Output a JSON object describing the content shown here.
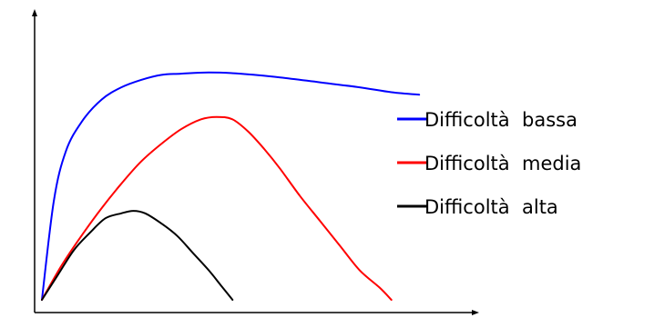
{
  "chart_data": {
    "type": "line",
    "title": "",
    "xlabel": "",
    "ylabel": "",
    "axis_ticks": false,
    "grid": false,
    "legend_position": "right",
    "xlim": [
      0,
      100
    ],
    "ylim": [
      0,
      100
    ],
    "series": [
      {
        "name": "Difficoltà  bassa",
        "color": "#0000ff",
        "x": [
          0,
          3,
          6,
          10,
          15,
          20,
          25,
          30,
          35,
          42,
          50,
          60,
          70,
          80,
          88,
          95
        ],
        "y": [
          0,
          40,
          60,
          72,
          81,
          86,
          89,
          91,
          91.5,
          92,
          91.5,
          90,
          88,
          86,
          84,
          83
        ]
      },
      {
        "name": "Difficoltà  media",
        "color": "#ff0000",
        "x": [
          0,
          5,
          10,
          15,
          20,
          25,
          30,
          35,
          40,
          44,
          48,
          52,
          56,
          60,
          65,
          70,
          75,
          80,
          85,
          88
        ],
        "y": [
          0,
          14,
          26,
          37,
          47,
          56,
          63,
          69,
          73,
          74,
          73,
          68,
          61,
          53,
          42,
          32,
          22,
          12,
          5,
          0
        ]
      },
      {
        "name": "Difficoltà  alta",
        "color": "#000000",
        "x": [
          0,
          4,
          8,
          12,
          16,
          20,
          23,
          26,
          30,
          34,
          38,
          42,
          45,
          48
        ],
        "y": [
          0,
          10,
          20,
          27,
          33,
          35,
          36,
          35,
          31,
          26,
          19,
          12,
          6,
          0
        ]
      }
    ]
  }
}
